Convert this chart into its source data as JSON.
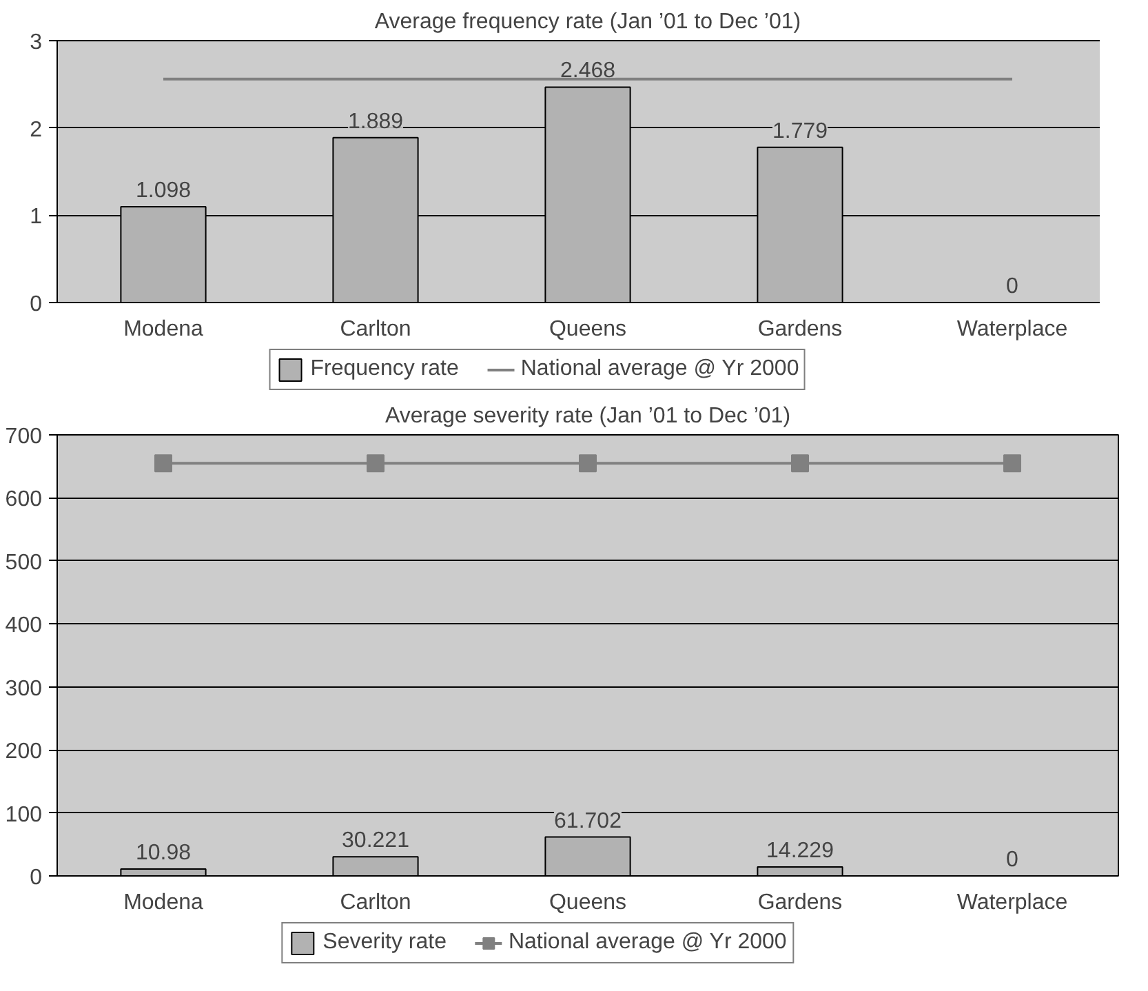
{
  "chart_data": [
    {
      "type": "bar",
      "title": "Average frequency rate (Jan ’01 to Dec ’01)",
      "categories": [
        "Modena",
        "Carlton",
        "Queens",
        "Gardens",
        "Waterplace"
      ],
      "ylim": [
        0,
        3
      ],
      "yticks": [
        0,
        1,
        2,
        3
      ],
      "grid": "y",
      "legend": "bottom",
      "series": [
        {
          "name": "Frequency rate",
          "color": "#b2b2b2",
          "values": [
            1.098,
            1.889,
            2.468,
            1.779,
            0
          ],
          "value_labels": [
            "1.098",
            "1.889",
            "2.468",
            "1.779",
            "0"
          ]
        },
        {
          "name": "National average @ Yr 2000",
          "type": "line",
          "color": "#808080",
          "values": [
            2.56,
            2.56,
            2.56,
            2.56,
            2.56
          ]
        }
      ]
    },
    {
      "type": "bar",
      "title": "Average severity rate (Jan ’01 to Dec ’01)",
      "categories": [
        "Modena",
        "Carlton",
        "Queens",
        "Gardens",
        "Waterplace"
      ],
      "ylim": [
        0,
        700
      ],
      "yticks": [
        0,
        100,
        200,
        300,
        400,
        500,
        600,
        700
      ],
      "grid": "y",
      "legend": "bottom",
      "series": [
        {
          "name": "Severity rate",
          "color": "#b2b2b2",
          "values": [
            10.98,
            30.221,
            61.702,
            14.229,
            0
          ],
          "value_labels": [
            "10.98",
            "30.221",
            "61.702",
            "14.229",
            "0"
          ]
        },
        {
          "name": "National average @ Yr 2000",
          "type": "line",
          "color": "#808080",
          "marker": "square",
          "values": [
            655,
            655,
            655,
            655,
            655
          ]
        }
      ]
    }
  ]
}
